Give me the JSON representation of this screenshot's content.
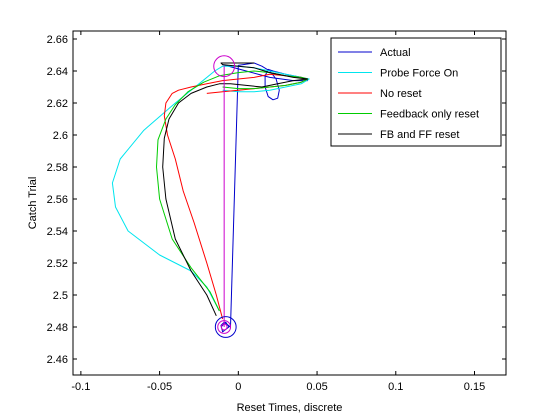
{
  "chart_data": {
    "type": "line",
    "xlabel": "Reset Times, discrete",
    "ylabel": "Catch Trial",
    "xlim": [
      -0.105,
      0.17
    ],
    "ylim": [
      2.45,
      2.665
    ],
    "xticks": [
      -0.1,
      -0.05,
      0,
      0.05,
      0.1,
      0.15
    ],
    "xtick_labels": [
      "-0.1",
      "-0.05",
      "0",
      "0.05",
      "0.1",
      "0.15"
    ],
    "yticks": [
      2.46,
      2.48,
      2.5,
      2.52,
      2.54,
      2.56,
      2.58,
      2.6,
      2.62,
      2.64,
      2.66
    ],
    "ytick_labels": [
      "2.46",
      "2.48",
      "2.5",
      "2.52",
      "2.54",
      "2.56",
      "2.58",
      "2.6",
      "2.62",
      "2.64",
      "2.66"
    ],
    "grid": false,
    "legend_position": "top-right",
    "series": [
      {
        "name": "Actual",
        "color": "#0000cc",
        "x": [
          -0.011,
          -0.008,
          -0.006,
          -0.01,
          -0.011,
          -0.009,
          -0.005,
          0.0,
          0.01,
          0.015,
          0.02,
          0.024,
          0.026,
          0.025,
          0.022,
          0.019,
          0.017,
          0.017,
          0.019,
          0.022,
          0.03,
          0.04,
          0.044,
          0.035,
          0.02,
          0.005,
          -0.01
        ],
        "y": [
          2.48,
          2.483,
          2.48,
          2.477,
          2.481,
          2.483,
          2.48,
          2.6435,
          2.645,
          2.643,
          2.64,
          2.635,
          2.628,
          2.623,
          2.622,
          2.624,
          2.63,
          2.637,
          2.641,
          2.64,
          2.638,
          2.636,
          2.634,
          2.634,
          2.636,
          2.64,
          2.644
        ]
      },
      {
        "name": "Probe Force On",
        "color": "#00e5ee",
        "x": [
          -0.012,
          -0.02,
          -0.03,
          -0.05,
          -0.07,
          -0.078,
          -0.08,
          -0.075,
          -0.06,
          -0.04,
          -0.025,
          -0.015,
          -0.01,
          0.0,
          0.01,
          0.02,
          0.03,
          0.04,
          0.045,
          0.04,
          0.03,
          0.02,
          0.01,
          0.0,
          -0.01
        ],
        "y": [
          2.49,
          2.505,
          2.515,
          2.525,
          2.54,
          2.555,
          2.57,
          2.585,
          2.603,
          2.62,
          2.632,
          2.64,
          2.643,
          2.643,
          2.642,
          2.64,
          2.638,
          2.636,
          2.635,
          2.632,
          2.63,
          2.628,
          2.627,
          2.627,
          2.628
        ]
      },
      {
        "name": "No reset",
        "color": "#ff0000",
        "x": [
          -0.01,
          -0.014,
          -0.02,
          -0.028,
          -0.035,
          -0.04,
          -0.045,
          -0.047,
          -0.046,
          -0.042,
          -0.038,
          -0.03,
          -0.02,
          -0.01,
          0.0,
          0.01,
          0.02,
          0.03,
          0.04,
          0.044,
          0.04,
          0.03,
          0.02,
          0.01,
          0.0,
          -0.01,
          -0.02
        ],
        "y": [
          2.485,
          2.5,
          2.52,
          2.545,
          2.565,
          2.585,
          2.6,
          2.612,
          2.62,
          2.626,
          2.628,
          2.63,
          2.632,
          2.634,
          2.635,
          2.636,
          2.638,
          2.637,
          2.636,
          2.635,
          2.633,
          2.631,
          2.63,
          2.629,
          2.628,
          2.627,
          2.626
        ]
      },
      {
        "name": "Feedback only reset",
        "color": "#00cc00",
        "x": [
          -0.012,
          -0.018,
          -0.03,
          -0.042,
          -0.05,
          -0.052,
          -0.051,
          -0.046,
          -0.04,
          -0.032,
          -0.022,
          -0.012,
          0.0,
          0.01,
          0.02,
          0.03,
          0.04,
          0.044,
          0.04,
          0.03,
          0.02,
          0.01,
          0.0,
          -0.01
        ],
        "y": [
          2.49,
          2.502,
          2.517,
          2.535,
          2.56,
          2.58,
          2.597,
          2.61,
          2.619,
          2.627,
          2.633,
          2.637,
          2.639,
          2.64,
          2.639,
          2.637,
          2.636,
          2.635,
          2.633,
          2.631,
          2.63,
          2.629,
          2.629,
          2.63
        ]
      },
      {
        "name": "FB and FF reset",
        "color": "#000000",
        "x": [
          -0.014,
          -0.02,
          -0.03,
          -0.04,
          -0.046,
          -0.048,
          -0.047,
          -0.044,
          -0.038,
          -0.03,
          -0.02,
          -0.012,
          -0.005,
          0.005,
          0.015,
          0.025,
          0.035,
          0.044,
          0.035,
          0.02,
          0.01,
          0.0,
          -0.01,
          -0.011,
          -0.008,
          0.0,
          0.01
        ],
        "y": [
          2.487,
          2.5,
          2.515,
          2.535,
          2.56,
          2.58,
          2.598,
          2.61,
          2.62,
          2.626,
          2.63,
          2.632,
          2.632,
          2.631,
          2.63,
          2.632,
          2.634,
          2.635,
          2.636,
          2.639,
          2.642,
          2.643,
          2.644,
          2.645,
          2.645,
          2.645,
          2.645
        ]
      }
    ],
    "annotations": [
      {
        "type": "vertical-line",
        "color": "#cc00cc",
        "x": -0.009,
        "y_from": 2.48,
        "y_to": 2.643
      },
      {
        "type": "circle",
        "color": "#cc00cc",
        "x": -0.009,
        "y": 2.643,
        "r_y": 0.0065
      },
      {
        "type": "circle",
        "color": "#cc00cc",
        "x": -0.009,
        "y": 2.48,
        "r_y": 0.004
      },
      {
        "type": "circle",
        "color": "#cc00cc",
        "x": -0.009,
        "y": 2.48,
        "r_y": 0.0018
      },
      {
        "type": "circle",
        "color": "#0000cc",
        "x": -0.008,
        "y": 2.48,
        "r_y": 0.0065
      }
    ]
  }
}
